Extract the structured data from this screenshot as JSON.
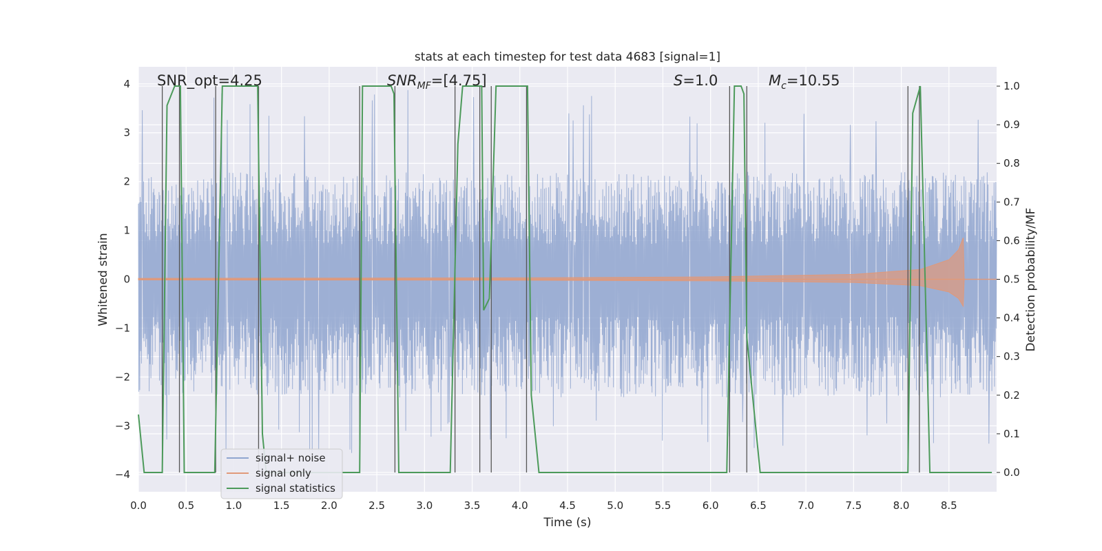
{
  "chart_data": {
    "type": "line",
    "title": "stats at each timestep for test data 4683 [signal=1]",
    "xlabel": "Time (s)",
    "ylabel_left": "Whitened strain",
    "ylabel_right": "Detection probability/MF",
    "xlim": [
      0.0,
      9.0
    ],
    "ylim_left": [
      -4.35,
      4.35
    ],
    "ylim_right": [
      -0.05,
      1.05
    ],
    "x_ticks": [
      "0.0",
      "0.5",
      "1.0",
      "1.5",
      "2.0",
      "2.5",
      "3.0",
      "3.5",
      "4.0",
      "4.5",
      "5.0",
      "5.5",
      "6.0",
      "6.5",
      "7.0",
      "7.5",
      "8.0",
      "8.5"
    ],
    "y_left_ticks": [
      "−4",
      "−3",
      "−2",
      "−1",
      "0",
      "1",
      "2",
      "3",
      "4"
    ],
    "y_right_ticks": [
      "0.0",
      "0.1",
      "0.2",
      "0.3",
      "0.4",
      "0.5",
      "0.6",
      "0.7",
      "0.8",
      "0.9",
      "1.0"
    ],
    "grid": true,
    "legend_position": "lower-left",
    "annotations": [
      "SNR_opt=4.25",
      "SNR",
      "MF",
      "=[4.75]",
      "S",
      "=1.0",
      "M",
      "c",
      "=10.55"
    ],
    "series": [
      {
        "name": "signal+ noise",
        "color": "#8fa5cf",
        "axis": "left",
        "kind": "noise",
        "envelope": {
          "upper_typical": 2.0,
          "lower_typical": -2.2,
          "spike_max": 3.9,
          "spike_min": -3.6
        }
      },
      {
        "name": "signal only",
        "color": "#e0997a",
        "axis": "left",
        "kind": "chirp",
        "envelope_points": [
          [
            0.0,
            0.02
          ],
          [
            4.0,
            0.03
          ],
          [
            6.0,
            0.05
          ],
          [
            7.5,
            0.1
          ],
          [
            8.2,
            0.2
          ],
          [
            8.5,
            0.4
          ],
          [
            8.6,
            0.6
          ],
          [
            8.65,
            0.85
          ],
          [
            8.66,
            0.0
          ],
          [
            9.0,
            0.0
          ]
        ]
      },
      {
        "name": "signal statistics",
        "color": "#4c9a5a",
        "axis": "right",
        "points": [
          [
            0.0,
            0.15
          ],
          [
            0.06,
            0.0
          ],
          [
            0.25,
            0.0
          ],
          [
            0.3,
            0.95
          ],
          [
            0.38,
            1.0
          ],
          [
            0.44,
            1.0
          ],
          [
            0.48,
            0.0
          ],
          [
            0.8,
            0.0
          ],
          [
            0.88,
            1.0
          ],
          [
            1.25,
            1.0
          ],
          [
            1.3,
            0.1
          ],
          [
            1.34,
            0.0
          ],
          [
            2.32,
            0.0
          ],
          [
            2.35,
            1.0
          ],
          [
            2.65,
            1.0
          ],
          [
            2.68,
            0.98
          ],
          [
            2.73,
            0.0
          ],
          [
            3.27,
            0.0
          ],
          [
            3.35,
            0.85
          ],
          [
            3.4,
            1.0
          ],
          [
            3.6,
            1.0
          ],
          [
            3.62,
            0.42
          ],
          [
            3.68,
            0.45
          ],
          [
            3.75,
            1.0
          ],
          [
            4.08,
            1.0
          ],
          [
            4.12,
            0.2
          ],
          [
            4.2,
            0.0
          ],
          [
            6.17,
            0.0
          ],
          [
            6.25,
            1.0
          ],
          [
            6.32,
            1.0
          ],
          [
            6.35,
            0.98
          ],
          [
            6.38,
            0.35
          ],
          [
            6.52,
            0.0
          ],
          [
            6.7,
            0.0
          ],
          [
            8.07,
            0.0
          ],
          [
            8.12,
            0.93
          ],
          [
            8.2,
            1.0
          ],
          [
            8.3,
            0.0
          ],
          [
            8.95,
            0.0
          ]
        ]
      }
    ],
    "vertical_lines": [
      0.25,
      0.43,
      0.81,
      1.26,
      2.32,
      2.69,
      3.32,
      3.58,
      3.7,
      4.07,
      6.2,
      6.38,
      8.07,
      8.19
    ]
  }
}
